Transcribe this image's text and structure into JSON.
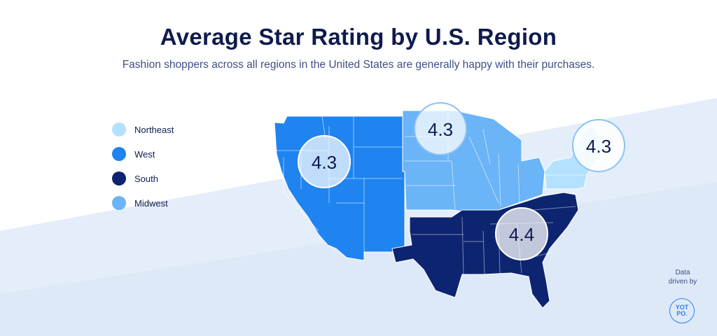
{
  "header": {
    "title": "Average Star Rating by U.S. Region",
    "subtitle": "Fashion shoppers across all regions in the United States are generally happy with their purchases."
  },
  "legend": [
    {
      "label": "Northeast",
      "color": "#b3e1ff"
    },
    {
      "label": "West",
      "color": "#1f83f0"
    },
    {
      "label": "South",
      "color": "#0d2470"
    },
    {
      "label": "Midwest",
      "color": "#6ab4f7"
    }
  ],
  "regions": {
    "west": {
      "rating": "4.3",
      "color": "#1f83f0"
    },
    "midwest": {
      "rating": "4.3",
      "color": "#6ab4f7"
    },
    "northeast": {
      "rating": "4.3",
      "color": "#b3e1ff"
    },
    "south": {
      "rating": "4.4",
      "color": "#0d2470"
    }
  },
  "credit": {
    "line1": "Data",
    "line2": "driven by",
    "logo_line1": "YOT",
    "logo_line2": "PO."
  }
}
